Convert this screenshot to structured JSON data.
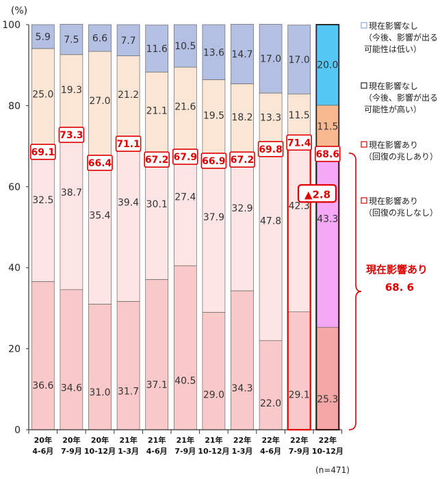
{
  "chart_data": {
    "type": "bar",
    "stacked": true,
    "y_unit_label": "(%)",
    "ylim": [
      0,
      100
    ],
    "yticks": [
      "0",
      "20",
      "40",
      "60",
      "80",
      "100"
    ],
    "categories": [
      [
        "20年",
        "4-6月"
      ],
      [
        "20年",
        "7-9月"
      ],
      [
        "20年",
        "10-12月"
      ],
      [
        "21年",
        "1-3月"
      ],
      [
        "21年",
        "4-6月"
      ],
      [
        "21年",
        "7-9月"
      ],
      [
        "21年",
        "10-12月"
      ],
      [
        "22年",
        "1-3月"
      ],
      [
        "22年",
        "4-6月"
      ],
      [
        "22年",
        "7-9月"
      ],
      [
        "22年",
        "10-12月"
      ]
    ],
    "series": [
      {
        "legend": [
          "現在影響あり",
          "（回復の兆しなし）"
        ],
        "color": "#f9c9c9",
        "latest_color": "#f4a6a6",
        "values": [
          "36.6",
          "34.6",
          "31.0",
          "31.7",
          "37.1",
          "40.5",
          "29.0",
          "34.3",
          "22.0",
          "29.1",
          "25.3"
        ]
      },
      {
        "legend": [
          "現在影響あり",
          "（回復の兆しあり）"
        ],
        "color": "#fde5e5",
        "latest_color": "#f5a8f5",
        "values": [
          "32.5",
          "38.7",
          "35.4",
          "39.4",
          "30.1",
          "27.4",
          "37.9",
          "32.9",
          "47.8",
          "42.3",
          "43.3"
        ]
      },
      {
        "legend": [
          "現在影響なし",
          "（今後、影響が出る",
          "可能性が高い）"
        ],
        "color": "#fbe6d6",
        "latest_color": "#f9b990",
        "values": [
          "25.0",
          "19.3",
          "27.0",
          "21.2",
          "21.1",
          "21.6",
          "19.5",
          "18.2",
          "13.3",
          "11.5",
          "11.5"
        ]
      },
      {
        "legend": [
          "現在影響なし",
          "（今後、影響が出る",
          "可能性は低い）"
        ],
        "color": "#b3c0e3",
        "latest_color": "#55c7f5",
        "values": [
          "5.9",
          "7.5",
          "6.6",
          "7.7",
          "11.6",
          "10.5",
          "13.6",
          "14.7",
          "17.0",
          "17.0",
          "20.0"
        ]
      }
    ],
    "totals": [
      "69.1",
      "73.3",
      "66.4",
      "71.1",
      "67.2",
      "67.9",
      "66.9",
      "67.2",
      "69.8",
      "71.4",
      "68.6"
    ],
    "change_label": "▲2.8",
    "bracket_title": "現在影響あり",
    "bracket_value": "68. 6",
    "sample_size": "(n=471)"
  }
}
